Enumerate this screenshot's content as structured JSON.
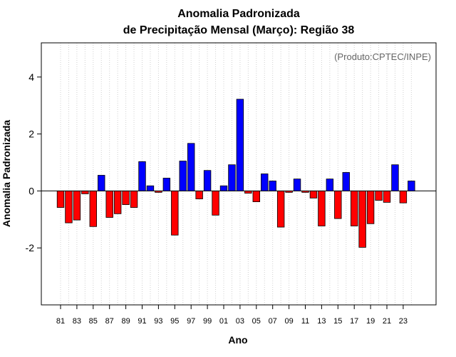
{
  "chart_data": {
    "type": "bar",
    "title_line1": "Anomalia Padronizada",
    "title_line2": "de Precipitação Mensal (Março): Região 38",
    "xlabel": "Ano",
    "ylabel": "Anomalia Padronizada",
    "credit": "(Produto:CPTEC/INPE)",
    "ylim": [
      -4,
      5.2
    ],
    "yticks": [
      -2,
      0,
      2,
      4
    ],
    "ytick_labels": [
      "-2",
      "0",
      "2",
      "4"
    ],
    "years": [
      1981,
      1982,
      1983,
      1984,
      1985,
      1986,
      1987,
      1988,
      1989,
      1990,
      1991,
      1992,
      1993,
      1994,
      1995,
      1996,
      1997,
      1998,
      1999,
      2000,
      2001,
      2002,
      2003,
      2004,
      2005,
      2006,
      2007,
      2008,
      2009,
      2010,
      2011,
      2012,
      2013,
      2014,
      2015,
      2016,
      2017,
      2018,
      2019,
      2020,
      2021,
      2022,
      2023,
      2024
    ],
    "xtick_labels": [
      "81",
      "83",
      "85",
      "87",
      "89",
      "91",
      "93",
      "95",
      "97",
      "99",
      "01",
      "03",
      "05",
      "07",
      "09",
      "11",
      "13",
      "15",
      "17",
      "19",
      "21",
      "23"
    ],
    "xtick_every": 2,
    "values": [
      -0.58,
      -1.12,
      -1.02,
      -0.1,
      -1.25,
      0.55,
      -0.93,
      -0.8,
      -0.48,
      -0.58,
      1.03,
      0.18,
      -0.05,
      0.45,
      -1.55,
      1.05,
      1.67,
      -0.28,
      0.72,
      -0.85,
      0.18,
      0.92,
      3.22,
      -0.08,
      -0.38,
      0.6,
      0.35,
      -1.27,
      -0.05,
      0.42,
      -0.05,
      -0.25,
      -1.23,
      0.42,
      -0.97,
      0.65,
      -1.23,
      -1.98,
      -1.15,
      -0.33,
      -0.4,
      0.92,
      -0.42,
      0.35
    ],
    "colors": {
      "positive": "#0000ff",
      "negative": "#ff0000",
      "grid": "#d0d0d0",
      "frame": "#000000"
    }
  }
}
